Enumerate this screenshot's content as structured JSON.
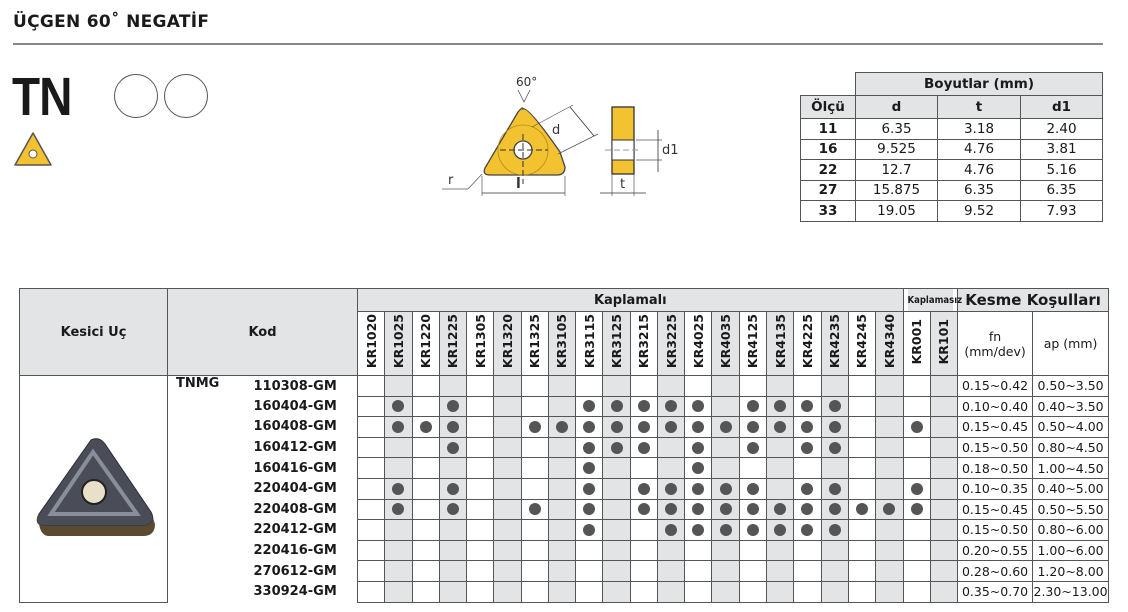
{
  "title": "ÜÇGEN 60˚ NEGATİF",
  "shape_code": "TN",
  "diagram": {
    "angle": "60°",
    "labels": [
      "d",
      "r",
      "l",
      "d1",
      "t"
    ],
    "insert_color": "#f2c230"
  },
  "dims": {
    "header": "Boyutlar (mm)",
    "columns": [
      "Ölçü",
      "d",
      "t",
      "d1"
    ],
    "rows": [
      [
        "11",
        "6.35",
        "3.18",
        "2.40"
      ],
      [
        "16",
        "9.525",
        "4.76",
        "3.81"
      ],
      [
        "22",
        "12.7",
        "4.76",
        "5.16"
      ],
      [
        "27",
        "15.875",
        "6.35",
        "6.35"
      ],
      [
        "33",
        "19.05",
        "9.52",
        "7.93"
      ]
    ]
  },
  "main": {
    "col_cutter": "Kesici Uç",
    "col_code": "Kod",
    "coated": "Kaplamalı",
    "uncoated": "Kaplamasız",
    "conditions": "Kesme Koşulları",
    "fn": "fn (mm/dev)",
    "ap": "ap (mm)",
    "grades": [
      "KR1020",
      "KR1025",
      "KR1220",
      "KR1225",
      "KR1305",
      "KR1320",
      "KR1325",
      "KR3105",
      "KR3115",
      "KR3125",
      "KR3215",
      "KR3225",
      "KR4025",
      "KR4035",
      "KR4125",
      "KR4135",
      "KR4225",
      "KR4235",
      "KR4245",
      "KR4340",
      "KR001",
      "KR101"
    ],
    "family": "TNMG",
    "rows": [
      {
        "code": "110308-GM",
        "grades": [],
        "fn": "0.15~0.42",
        "ap": "0.50~3.50"
      },
      {
        "code": "160404-GM",
        "grades": [
          "KR1025",
          "KR1225",
          "KR3115",
          "KR3125",
          "KR3215",
          "KR3225",
          "KR4025",
          "KR4125",
          "KR4135",
          "KR4225",
          "KR4235"
        ],
        "fn": "0.10~0.40",
        "ap": "0.40~3.50"
      },
      {
        "code": "160408-GM",
        "grades": [
          "KR1025",
          "KR1220",
          "KR1225",
          "KR1325",
          "KR3105",
          "KR3115",
          "KR3125",
          "KR3215",
          "KR3225",
          "KR4025",
          "KR4035",
          "KR4125",
          "KR4135",
          "KR4225",
          "KR4235",
          "KR001"
        ],
        "fn": "0.15~0.45",
        "ap": "0.50~4.00"
      },
      {
        "code": "160412-GM",
        "grades": [
          "KR1225",
          "KR3115",
          "KR3125",
          "KR3215",
          "KR4025",
          "KR4125",
          "KR4225",
          "KR4235"
        ],
        "fn": "0.15~0.50",
        "ap": "0.80~4.50"
      },
      {
        "code": "160416-GM",
        "grades": [
          "KR3115",
          "KR4025"
        ],
        "fn": "0.18~0.50",
        "ap": "1.00~4.50"
      },
      {
        "code": "220404-GM",
        "grades": [
          "KR1025",
          "KR1225",
          "KR3115",
          "KR3215",
          "KR3225",
          "KR4025",
          "KR4035",
          "KR4125",
          "KR4225",
          "KR4235",
          "KR001"
        ],
        "fn": "0.10~0.35",
        "ap": "0.40~5.00"
      },
      {
        "code": "220408-GM",
        "grades": [
          "KR1025",
          "KR1225",
          "KR1325",
          "KR3115",
          "KR3215",
          "KR3225",
          "KR4025",
          "KR4035",
          "KR4125",
          "KR4135",
          "KR4225",
          "KR4235",
          "KR4245",
          "KR4340",
          "KR001"
        ],
        "fn": "0.15~0.45",
        "ap": "0.50~5.50"
      },
      {
        "code": "220412-GM",
        "grades": [
          "KR3115",
          "KR3225",
          "KR4025",
          "KR4035",
          "KR4125",
          "KR4135",
          "KR4225",
          "KR4235"
        ],
        "fn": "0.15~0.50",
        "ap": "0.80~6.00"
      },
      {
        "code": "220416-GM",
        "grades": [],
        "fn": "0.20~0.55",
        "ap": "1.00~6.00"
      },
      {
        "code": "270612-GM",
        "grades": [],
        "fn": "0.28~0.60",
        "ap": "1.20~8.00"
      },
      {
        "code": "330924-GM",
        "grades": [],
        "fn": "0.35~0.70",
        "ap": "2.30~13.00"
      }
    ]
  }
}
